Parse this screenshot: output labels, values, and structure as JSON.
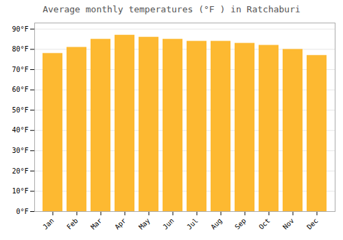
{
  "chart_data": {
    "type": "bar",
    "title": "Average monthly temperatures (°F ) in Ratchaburi",
    "categories": [
      "Jan",
      "Feb",
      "Mar",
      "Apr",
      "May",
      "Jun",
      "Jul",
      "Aug",
      "Sep",
      "Oct",
      "Nov",
      "Dec"
    ],
    "values": [
      78,
      81,
      85,
      87,
      86,
      85,
      84,
      84,
      83,
      82,
      80,
      77
    ],
    "color": "#FDB931",
    "ylim": [
      0,
      93
    ],
    "yticks": [
      {
        "value": 0,
        "label": "0°F"
      },
      {
        "value": 10,
        "label": "10°F"
      },
      {
        "value": 20,
        "label": "20°F"
      },
      {
        "value": 30,
        "label": "30°F"
      },
      {
        "value": 40,
        "label": "40°F"
      },
      {
        "value": 50,
        "label": "50°F"
      },
      {
        "value": 60,
        "label": "60°F"
      },
      {
        "value": 70,
        "label": "70°F"
      },
      {
        "value": 80,
        "label": "80°F"
      },
      {
        "value": 90,
        "label": "90°F"
      }
    ],
    "grid": true
  }
}
